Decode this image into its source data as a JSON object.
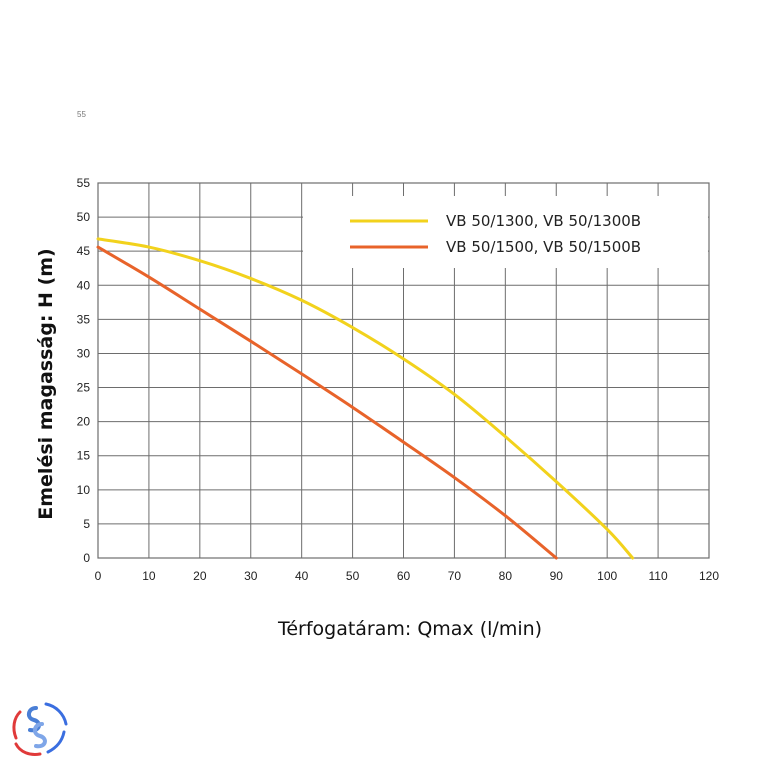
{
  "stray_label": "55",
  "chart_data": {
    "type": "line",
    "title": "",
    "xlabel": "Térfogatáram: Qmax (l/min)",
    "ylabel": "Emelési magasság: H (m)",
    "xlim": [
      0,
      120
    ],
    "ylim": [
      0,
      55
    ],
    "x_ticks": [
      0,
      10,
      20,
      30,
      40,
      50,
      60,
      70,
      80,
      90,
      100,
      110,
      120
    ],
    "y_ticks": [
      0,
      5,
      10,
      15,
      20,
      25,
      30,
      35,
      40,
      45,
      50,
      55
    ],
    "grid": true,
    "legend_position": "top-right",
    "series": [
      {
        "name": "VB 50/1300, VB 50/1300B",
        "color": "#f2d21c",
        "x": [
          0,
          10,
          20,
          30,
          40,
          50,
          60,
          70,
          80,
          90,
          100,
          105
        ],
        "y": [
          46.8,
          45.6,
          43.6,
          41.0,
          37.8,
          33.8,
          29.2,
          24.0,
          17.8,
          11.2,
          4.2,
          0
        ]
      },
      {
        "name": "VB 50/1500, VB 50/1500B",
        "color": "#e8632a",
        "x": [
          0,
          10,
          20,
          30,
          40,
          50,
          60,
          70,
          80,
          90
        ],
        "y": [
          45.6,
          41.2,
          36.5,
          31.8,
          27.0,
          22.1,
          17.0,
          11.8,
          6.2,
          0
        ]
      }
    ]
  }
}
